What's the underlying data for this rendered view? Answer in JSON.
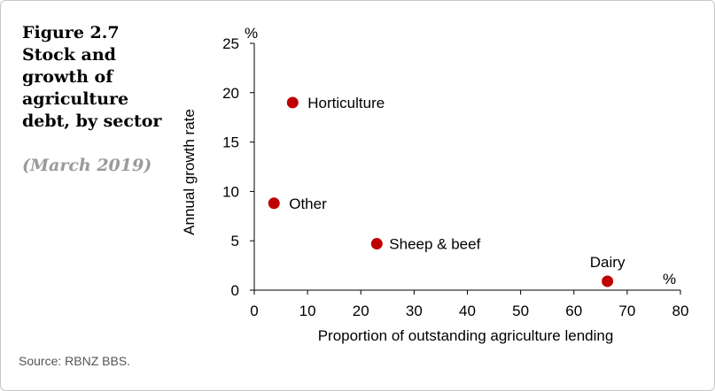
{
  "figure": {
    "title": "Figure 2.7 Stock and growth of agriculture debt, by sector",
    "date": "(March 2019)",
    "source": "Source: RBNZ BBS."
  },
  "chart_data": {
    "type": "scatter",
    "xlabel": "Proportion of outstanding agriculture lending",
    "ylabel": "Annual growth rate",
    "x_unit": "%",
    "y_unit": "%",
    "xlim": [
      0,
      80
    ],
    "ylim": [
      0,
      25
    ],
    "x_ticks": [
      0,
      10,
      20,
      30,
      40,
      50,
      60,
      70,
      80
    ],
    "y_ticks": [
      0,
      5,
      10,
      15,
      20,
      25
    ],
    "grid": false,
    "legend": "none",
    "point_color": "#c00000",
    "points": [
      {
        "label": "Horticulture",
        "x": 7.2,
        "y": 19.0
      },
      {
        "label": "Other",
        "x": 3.7,
        "y": 8.8
      },
      {
        "label": "Sheep & beef",
        "x": 23.0,
        "y": 4.7
      },
      {
        "label": "Dairy",
        "x": 66.3,
        "y": 0.9
      }
    ]
  }
}
